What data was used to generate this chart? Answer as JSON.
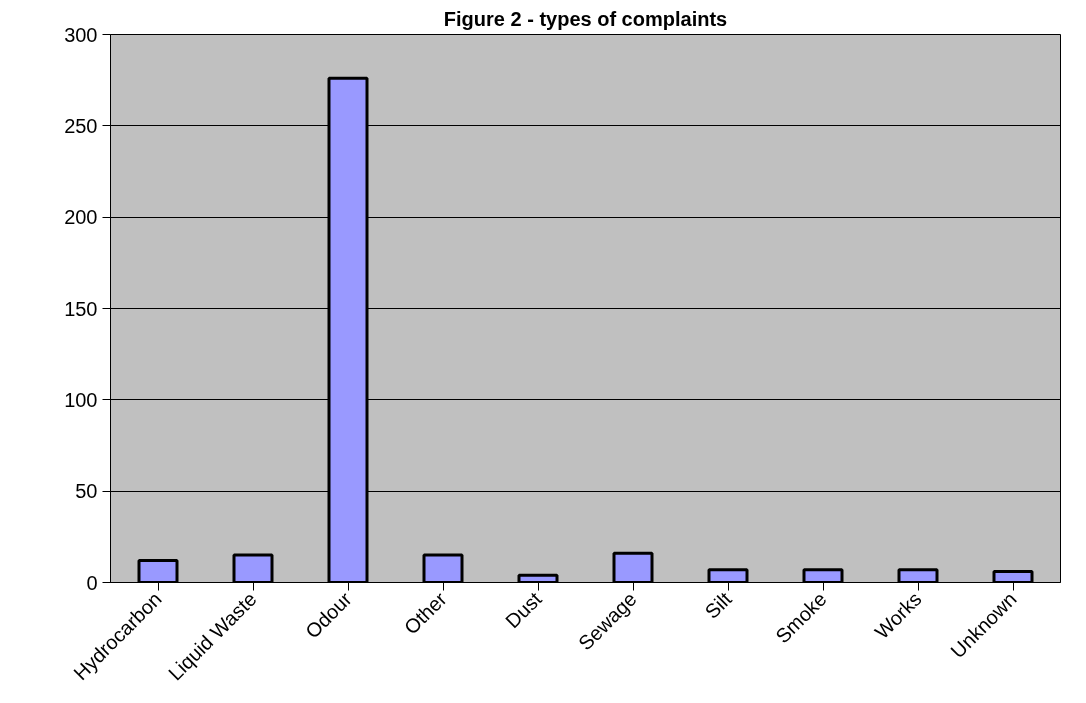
{
  "chart_data": {
    "type": "bar",
    "title": "Figure 2 - types of complaints",
    "categories": [
      "Hydrocarbon",
      "Liquid Waste",
      "Odour",
      "Other",
      "Dust",
      "Sewage",
      "Silt",
      "Smoke",
      "Works",
      "Unknown"
    ],
    "values": [
      12,
      15,
      276,
      15,
      4,
      16,
      7,
      7,
      7,
      6
    ],
    "color": "#9999ff",
    "ylim": [
      0,
      300
    ],
    "yticks": [
      0,
      50,
      100,
      150,
      200,
      250,
      300
    ],
    "grid": "y"
  }
}
